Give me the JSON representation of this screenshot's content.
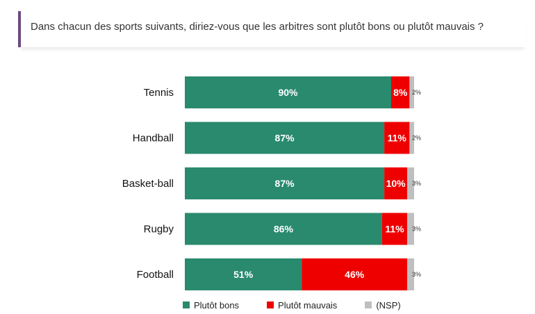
{
  "header": {
    "question": "Dans chacun des sports suivants, diriez-vous que les arbitres sont plutôt bons ou plutôt mauvais ?"
  },
  "colors": {
    "bons": "#2a8a6e",
    "mauvais": "#ee0000",
    "nsp": "#bfbfbf",
    "accent": "#6b4a7e"
  },
  "chart_data": {
    "type": "bar",
    "orientation": "horizontal",
    "stacked": true,
    "categories": [
      "Tennis",
      "Handball",
      "Basket-ball",
      "Rugby",
      "Football"
    ],
    "series": [
      {
        "name": "Plutôt bons",
        "values": [
          90,
          87,
          87,
          86,
          51
        ],
        "labels": [
          "90%",
          "87%",
          "87%",
          "86%",
          "51%"
        ]
      },
      {
        "name": "Plutôt mauvais",
        "values": [
          8,
          11,
          10,
          11,
          46
        ],
        "labels": [
          "8%",
          "11%",
          "10%",
          "11%",
          "46%"
        ]
      },
      {
        "name": "(NSP)",
        "values": [
          2,
          2,
          3,
          3,
          3
        ],
        "labels": [
          "2%",
          "2%",
          "3%",
          "3%",
          "3%"
        ]
      }
    ],
    "xlim": [
      0,
      100
    ],
    "grid": false,
    "legend_position": "bottom"
  }
}
